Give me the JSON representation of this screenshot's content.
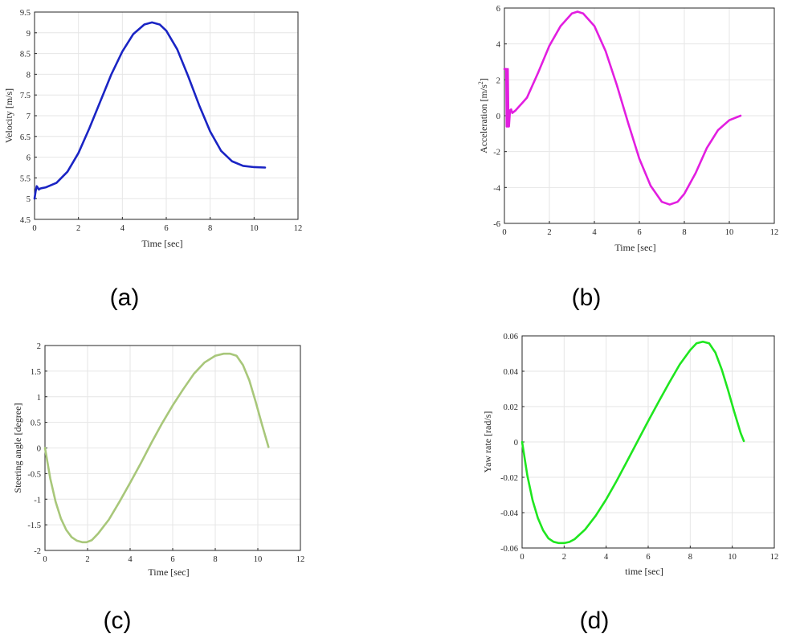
{
  "chart_data": [
    {
      "type": "line",
      "panel_label": "(a)",
      "xlabel": "Time [sec]",
      "ylabel": "Velocity [m/s]",
      "xlim": [
        0,
        12
      ],
      "ylim": [
        4.5,
        9.5
      ],
      "xticks": [
        "0",
        "2",
        "4",
        "6",
        "8",
        "10",
        "12"
      ],
      "yticks": [
        "4.5",
        "5",
        "5.5",
        "6",
        "6.5",
        "7",
        "7.5",
        "8",
        "8.5",
        "9",
        "9.5"
      ],
      "grid": true,
      "color": "#1a24c4",
      "series": [
        {
          "name": "Velocity",
          "x": [
            0,
            0.05,
            0.1,
            0.15,
            0.2,
            0.25,
            0.3,
            0.5,
            1.0,
            1.5,
            2.0,
            2.5,
            3.0,
            3.5,
            4.0,
            4.5,
            5.0,
            5.35,
            5.7,
            6.0,
            6.5,
            7.0,
            7.5,
            8.0,
            8.5,
            9.0,
            9.5,
            10.0,
            10.5
          ],
          "y": [
            5.0,
            5.18,
            5.3,
            5.26,
            5.22,
            5.24,
            5.25,
            5.27,
            5.38,
            5.65,
            6.1,
            6.7,
            7.35,
            8.0,
            8.55,
            8.97,
            9.2,
            9.25,
            9.2,
            9.05,
            8.6,
            7.95,
            7.25,
            6.62,
            6.15,
            5.9,
            5.79,
            5.76,
            5.75
          ]
        }
      ]
    },
    {
      "type": "line",
      "panel_label": "(b)",
      "xlabel": "Time [sec]",
      "ylabel": "Acceleration [m/s",
      "ylabel_sup": "2",
      "ylabel_end": "]",
      "xlim": [
        0,
        12
      ],
      "ylim": [
        -6,
        6
      ],
      "xticks": [
        "0",
        "2",
        "4",
        "6",
        "8",
        "10",
        "12"
      ],
      "yticks": [
        "-6",
        "-4",
        "-2",
        "0",
        "2",
        "4",
        "6"
      ],
      "grid": true,
      "color": "#e21ee0",
      "series": [
        {
          "name": "Acceleration",
          "x": [
            0,
            0.02,
            0.05,
            0.08,
            0.1,
            0.12,
            0.15,
            0.18,
            0.2,
            0.25,
            0.3,
            0.35,
            0.5,
            1.0,
            1.5,
            2.0,
            2.5,
            3.0,
            3.25,
            3.5,
            4.0,
            4.5,
            5.0,
            5.5,
            6.0,
            6.5,
            7.0,
            7.35,
            7.7,
            8.0,
            8.5,
            9.0,
            9.5,
            10.0,
            10.5
          ],
          "y": [
            2.6,
            2.6,
            2.6,
            2.6,
            -0.6,
            -0.6,
            2.6,
            -0.6,
            -0.6,
            0.3,
            0.35,
            0.15,
            0.3,
            1.0,
            2.4,
            3.9,
            5.0,
            5.7,
            5.8,
            5.7,
            5.0,
            3.6,
            1.7,
            -0.4,
            -2.4,
            -3.9,
            -4.8,
            -4.95,
            -4.8,
            -4.35,
            -3.2,
            -1.8,
            -0.8,
            -0.25,
            0.0
          ]
        }
      ]
    },
    {
      "type": "line",
      "panel_label": "(c)",
      "xlabel": "Time [sec]",
      "ylabel": "Steering angle [degree]",
      "xlim": [
        0,
        12
      ],
      "ylim": [
        -2,
        2
      ],
      "xticks": [
        "0",
        "2",
        "4",
        "6",
        "8",
        "10",
        "12"
      ],
      "yticks": [
        "-2",
        "-1.5",
        "-1",
        "-0.5",
        "0",
        "0.5",
        "1",
        "1.5",
        "2"
      ],
      "grid": true,
      "color": "#a8c77a",
      "series": [
        {
          "name": "Steering angle",
          "x": [
            0,
            0.25,
            0.5,
            0.75,
            1.0,
            1.25,
            1.5,
            1.75,
            1.95,
            2.2,
            2.5,
            3.0,
            3.5,
            4.0,
            4.5,
            5.0,
            5.5,
            6.0,
            6.5,
            7.0,
            7.5,
            8.0,
            8.4,
            8.7,
            9.0,
            9.3,
            9.6,
            9.9,
            10.2,
            10.5
          ],
          "y": [
            0,
            -0.6,
            -1.05,
            -1.38,
            -1.6,
            -1.74,
            -1.81,
            -1.84,
            -1.84,
            -1.8,
            -1.67,
            -1.4,
            -1.05,
            -0.68,
            -0.3,
            0.1,
            0.48,
            0.83,
            1.15,
            1.45,
            1.67,
            1.8,
            1.84,
            1.84,
            1.8,
            1.62,
            1.32,
            0.9,
            0.45,
            0.02
          ]
        }
      ]
    },
    {
      "type": "line",
      "panel_label": "(d)",
      "xlabel": "time [sec]",
      "ylabel": "Yaw rate [rad/s]",
      "xlim": [
        0,
        12
      ],
      "ylim": [
        -0.06,
        0.06
      ],
      "xticks": [
        "0",
        "2",
        "4",
        "6",
        "8",
        "10",
        "12"
      ],
      "yticks": [
        "-0.06",
        "-0.04",
        "-0.02",
        "0",
        "0.02",
        "0.04",
        "0.06"
      ],
      "grid": true,
      "color": "#1fe61f",
      "series": [
        {
          "name": "Yaw rate",
          "x": [
            0,
            0.25,
            0.5,
            0.75,
            1.0,
            1.25,
            1.5,
            1.75,
            2.0,
            2.25,
            2.5,
            3.0,
            3.5,
            4.0,
            4.5,
            5.0,
            5.5,
            6.0,
            6.5,
            7.0,
            7.5,
            8.0,
            8.3,
            8.6,
            8.9,
            9.2,
            9.5,
            9.8,
            10.1,
            10.4,
            10.55
          ],
          "y": [
            0,
            -0.019,
            -0.033,
            -0.043,
            -0.05,
            -0.0545,
            -0.0565,
            -0.0572,
            -0.0572,
            -0.0566,
            -0.055,
            -0.0495,
            -0.0418,
            -0.0325,
            -0.022,
            -0.0108,
            0.0005,
            0.0118,
            0.0228,
            0.0335,
            0.0438,
            0.052,
            0.0558,
            0.0567,
            0.0558,
            0.0505,
            0.041,
            0.0293,
            0.0168,
            0.005,
            0.0005
          ]
        }
      ]
    }
  ]
}
